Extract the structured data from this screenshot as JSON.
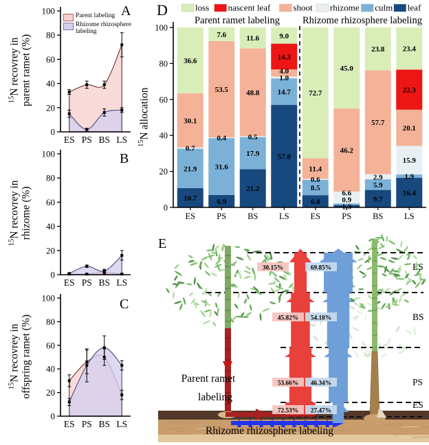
{
  "panels": {
    "A": {
      "letter": "A",
      "ylabel": [
        "15N recovrey in",
        "parent ramet (%)"
      ],
      "legend": {
        "parent": "Parent labeling",
        "rhizome": "Rhizome rhizosphere labeling"
      }
    },
    "B": {
      "letter": "B",
      "ylabel": [
        "15N recovrey in",
        "rhizome (%)"
      ]
    },
    "C": {
      "letter": "C",
      "ylabel": [
        "15N recovrey in",
        "offspring ramet (%)"
      ]
    },
    "D": {
      "letter": "D",
      "ylabel": "15N allocation",
      "group_labels": [
        "Parent ramet labeling",
        "Rhizome rhizosphere labeling"
      ]
    },
    "E": {
      "letter": "E",
      "left_label": [
        "Parent ramet",
        "labeling"
      ],
      "bottom_label": "Rhizome rhizosphere labeling",
      "stage_labels": [
        "LS",
        "BS",
        "PS",
        "ES"
      ]
    }
  },
  "colors": {
    "parent_fill": "#f8d2d0",
    "parent_line": "#7a3a3a",
    "rhizome_fill": "#d5cfed",
    "rhizome_line": "#5c5480",
    "loss": "#d9edb8",
    "nascent_leaf": "#ee1515",
    "shoot": "#f4b298",
    "rhizome_seg": "#e9f0f4",
    "culm": "#7cb1d7",
    "leaf": "#17497f",
    "flow_red": "#e8413c",
    "flow_blue": "#6f9fd8",
    "dark_red": "#a62121",
    "bright_blue": "#2233ee",
    "red_label_bg": "#f6c5c0",
    "red_label_text": "#8f1d15",
    "blue_label_bg": "#c5daee",
    "blue_label_text": "#1c3d66"
  },
  "chart_data": [
    {
      "id": "A",
      "type": "area",
      "title": "",
      "ylabel": "15N recovrey in parent ramet (%)",
      "categories": [
        "ES",
        "PS",
        "BS",
        "LS"
      ],
      "ylim": [
        0,
        100
      ],
      "yticks": [
        0,
        20,
        40,
        60,
        80,
        100
      ],
      "grid": false,
      "legend_position": "top-left",
      "series": [
        {
          "name": "Parent labeling",
          "values": [
            33,
            39,
            39,
            72
          ],
          "errors": [
            2,
            3,
            3,
            10
          ]
        },
        {
          "name": "Rhizome rhizosphere labeling",
          "values": [
            15,
            2,
            16,
            18
          ],
          "errors": [
            3,
            1,
            3,
            2
          ]
        }
      ]
    },
    {
      "id": "B",
      "type": "area",
      "title": "",
      "ylabel": "15N recovrey in rhizome (%)",
      "categories": [
        "ES",
        "PS",
        "BS",
        "LS"
      ],
      "ylim": [
        0,
        100
      ],
      "yticks": [
        0,
        20,
        40,
        60,
        80,
        100
      ],
      "grid": false,
      "series": [
        {
          "name": "Parent labeling",
          "values": [
            0.5,
            0.5,
            2,
            0.5
          ],
          "errors": [
            0.4,
            0.4,
            1.5,
            0.4
          ]
        },
        {
          "name": "Rhizome rhizosphere labeling",
          "values": [
            1,
            7,
            3,
            16
          ],
          "errors": [
            0.5,
            1,
            1.5,
            4
          ]
        }
      ]
    },
    {
      "id": "C",
      "type": "area",
      "title": "",
      "ylabel": "15N recovrey in offspring ramet (%)",
      "categories": [
        "ES",
        "PS",
        "BS",
        "LS"
      ],
      "ylim": [
        0,
        100
      ],
      "yticks": [
        0,
        20,
        40,
        60,
        80,
        100
      ],
      "grid": false,
      "series": [
        {
          "name": "Parent labeling",
          "values": [
            30,
            46,
            50,
            18
          ],
          "errors": [
            5,
            10,
            7,
            4
          ]
        },
        {
          "name": "Rhizome rhizosphere labeling",
          "values": [
            12,
            43,
            58,
            43
          ],
          "errors": [
            3,
            14,
            10,
            4
          ]
        }
      ]
    },
    {
      "id": "D",
      "type": "bar",
      "stacked": true,
      "ylabel": "15N allocation",
      "ylim": [
        0,
        100
      ],
      "yticks": [
        0,
        20,
        40,
        60,
        80,
        100
      ],
      "categories": [
        "ES",
        "PS",
        "BS",
        "LS",
        "ES",
        "PS",
        "BS",
        "LS"
      ],
      "groups": [
        "Parent ramet labeling",
        "Rhizome rhizosphere labeling"
      ],
      "segment_order_bottom_up": [
        "leaf",
        "culm",
        "rhizome",
        "shoot",
        "nascent_leaf",
        "loss"
      ],
      "legend": [
        {
          "name": "loss",
          "key": "loss"
        },
        {
          "name": "nascent leaf",
          "key": "nascent_leaf"
        },
        {
          "name": "shoot",
          "key": "shoot"
        },
        {
          "name": "rhizome",
          "key": "rhizome"
        },
        {
          "name": "culm",
          "key": "culm"
        },
        {
          "name": "leaf",
          "key": "leaf"
        }
      ],
      "bars": [
        {
          "group": "Parent ramet labeling",
          "category": "ES",
          "leaf": 10.7,
          "culm": 21.9,
          "rhizome": 0.7,
          "shoot": 30.1,
          "nascent_leaf": 0,
          "loss": 36.6
        },
        {
          "group": "Parent ramet labeling",
          "category": "PS",
          "leaf": 6.9,
          "culm": 31.6,
          "rhizome": 0.4,
          "shoot": 53.5,
          "nascent_leaf": 0,
          "loss": 7.6
        },
        {
          "group": "Parent ramet labeling",
          "category": "BS",
          "leaf": 21.2,
          "culm": 17.9,
          "rhizome": 0.5,
          "shoot": 48.8,
          "nascent_leaf": 0,
          "loss": 11.6
        },
        {
          "group": "Parent ramet labeling",
          "category": "LS",
          "leaf": 57.0,
          "culm": 14.7,
          "rhizome": 1.0,
          "shoot": 4.0,
          "nascent_leaf": 14.3,
          "loss": 9.0
        },
        {
          "group": "Rhizome rhizosphere labeling",
          "category": "ES",
          "leaf": 6.8,
          "culm": 8.5,
          "rhizome": 0.6,
          "shoot": 11.4,
          "nascent_leaf": 0,
          "loss": 72.7
        },
        {
          "group": "Rhizome rhizosphere labeling",
          "category": "PS",
          "leaf": 1.3,
          "culm": 0.9,
          "rhizome": 6.6,
          "shoot": 46.2,
          "nascent_leaf": 0,
          "loss": 45.0
        },
        {
          "group": "Rhizome rhizosphere labeling",
          "category": "BS",
          "leaf": 9.7,
          "culm": 5.9,
          "rhizome": 2.9,
          "shoot": 57.7,
          "nascent_leaf": 0,
          "loss": 23.8
        },
        {
          "group": "Rhizome rhizosphere labeling",
          "category": "LS",
          "leaf": 16.4,
          "culm": 1.9,
          "rhizome": 15.9,
          "shoot": 20.1,
          "nascent_leaf": 22.3,
          "loss": 23.4
        }
      ]
    },
    {
      "id": "E",
      "type": "flow-diagram",
      "stages": [
        "LS",
        "BS",
        "PS",
        "ES"
      ],
      "series": [
        {
          "name": "Parent ramet labeling",
          "values_pct": [
            30.15,
            45.82,
            53.66,
            72.53
          ],
          "labels": [
            "30.15%",
            "45.82%",
            "53.66%",
            "72.53%"
          ]
        },
        {
          "name": "Rhizome rhizosphere labeling",
          "values_pct": [
            69.85,
            54.18,
            46.34,
            27.47
          ],
          "labels": [
            "69.85%",
            "54.18%",
            "46.34%",
            "27.47%"
          ]
        }
      ]
    }
  ]
}
